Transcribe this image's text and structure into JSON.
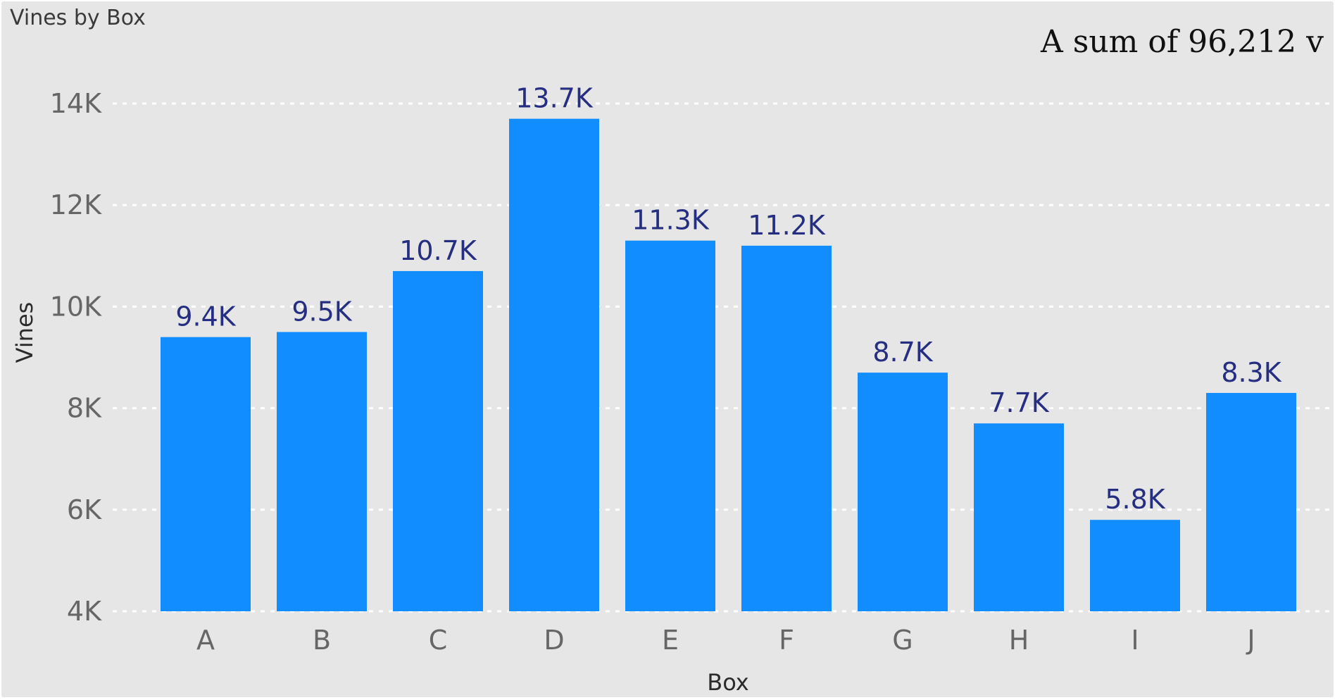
{
  "visual": {
    "title": "Vines by Box",
    "annotation": "A sum of 96,212 v"
  },
  "chart_data": {
    "type": "bar",
    "title": "Vines by Box",
    "xlabel": "Box",
    "ylabel": "Vines",
    "categories": [
      "A",
      "B",
      "C",
      "D",
      "E",
      "F",
      "G",
      "H",
      "I",
      "J"
    ],
    "values": [
      9400,
      9500,
      10700,
      13700,
      11300,
      11200,
      8700,
      7700,
      5800,
      8300
    ],
    "data_labels": [
      "9.4K",
      "9.5K",
      "10.7K",
      "13.7K",
      "11.3K",
      "11.2K",
      "8.7K",
      "7.7K",
      "5.8K",
      "8.3K"
    ],
    "ylim": [
      4000,
      14000
    ],
    "yticks": [
      4000,
      6000,
      8000,
      10000,
      12000,
      14000
    ],
    "ytick_labels": [
      "4K",
      "6K",
      "8K",
      "10K",
      "12K",
      "14K"
    ],
    "grid": true,
    "bar_color": "#118dff",
    "label_color": "#252e80"
  }
}
